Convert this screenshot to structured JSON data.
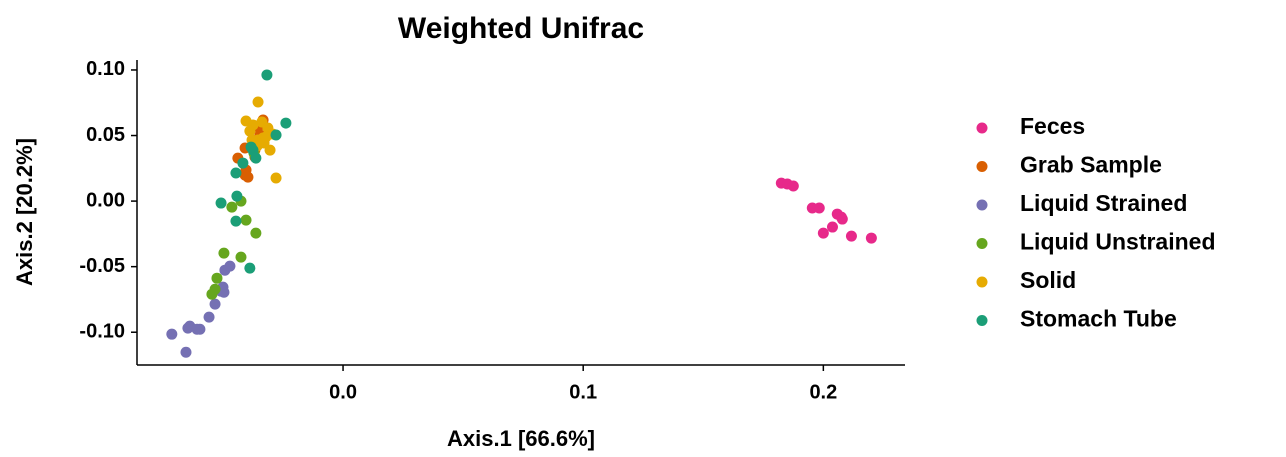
{
  "chart_data": {
    "type": "scatter",
    "title": "Weighted Unifrac",
    "x_label": "Axis.1   [66.6%]",
    "y_label": "Axis.2   [20.2%]",
    "xlim": [
      -0.0858,
      0.234
    ],
    "ylim": [
      -0.125,
      0.1076
    ],
    "xticks": [
      {
        "value": 0,
        "label": "0.0"
      },
      {
        "value": 0.1,
        "label": "0.1"
      },
      {
        "value": 0.2,
        "label": "0.2"
      }
    ],
    "yticks": [
      {
        "value": -0.1,
        "label": "-0.10"
      },
      {
        "value": -0.05,
        "label": "-0.05"
      },
      {
        "value": 0,
        "label": "0.00"
      },
      {
        "value": 0.05,
        "label": "0.05"
      },
      {
        "value": 0.1,
        "label": "0.10"
      }
    ],
    "legend": "right",
    "series": [
      {
        "name": "Feces",
        "color": "#e7298a",
        "x": [
          0.1825,
          0.185,
          0.1875,
          0.1954,
          0.1983,
          0.2,
          0.2038,
          0.2058,
          0.2075,
          0.2079,
          0.2117,
          0.22
        ],
        "values": [
          0.0137,
          0.013,
          0.0115,
          -0.0053,
          -0.0053,
          -0.0244,
          -0.0198,
          -0.0099,
          -0.0122,
          -0.0137,
          -0.0267,
          -0.0282
        ]
      },
      {
        "name": "Grab Sample",
        "color": "#d95f02",
        "x": [
          -0.0333,
          -0.0354,
          -0.0408,
          -0.0438,
          -0.0367,
          -0.0404,
          -0.0408,
          -0.0396,
          -0.0367,
          -0.0346
        ],
        "values": [
          0.0618,
          0.0565,
          0.0405,
          0.0328,
          0.0336,
          0.0237,
          0.0198,
          0.0183,
          0.0389,
          0.0504
        ]
      },
      {
        "name": "Liquid Strained",
        "color": "#7570b3",
        "x": [
          -0.0713,
          -0.0654,
          -0.0638,
          -0.0646,
          -0.0608,
          -0.0596,
          -0.0558,
          -0.0533,
          -0.0508,
          -0.0496,
          -0.0492,
          -0.0471,
          -0.05
        ],
        "values": [
          -0.1015,
          -0.1153,
          -0.0954,
          -0.0969,
          -0.0977,
          -0.0977,
          -0.0885,
          -0.0786,
          -0.0687,
          -0.0695,
          -0.0527,
          -0.0496,
          -0.0656
        ]
      },
      {
        "name": "Liquid Unstrained",
        "color": "#66a61e",
        "x": [
          -0.0546,
          -0.0525,
          -0.0496,
          -0.0463,
          -0.0425,
          -0.0404,
          -0.0363,
          -0.0425,
          -0.0371,
          -0.0533
        ],
        "values": [
          -0.071,
          -0.0588,
          -0.0397,
          -0.0046,
          0,
          -0.0145,
          -0.0244,
          -0.0427,
          0.0366,
          -0.0672
        ]
      },
      {
        "name": "Solid",
        "color": "#e6ab02",
        "x": [
          -0.0354,
          -0.0404,
          -0.0375,
          -0.0338,
          -0.0313,
          -0.0292,
          -0.0354,
          -0.0333,
          -0.0304,
          -0.0379,
          -0.0358,
          -0.0329,
          -0.0279,
          -0.0388,
          -0.0321
        ],
        "values": [
          0.0756,
          0.0611,
          0.058,
          0.0603,
          0.0557,
          0.0511,
          0.0466,
          0.0481,
          0.0389,
          0.0466,
          0.042,
          0.0443,
          0.0176,
          0.0534,
          0.0489
        ]
      },
      {
        "name": "Stomach Tube",
        "color": "#1b9e77",
        "x": [
          -0.0317,
          -0.0238,
          -0.0279,
          -0.0375,
          -0.0383,
          -0.0417,
          -0.0446,
          -0.0442,
          -0.0508,
          -0.0446,
          -0.0388,
          -0.0363
        ],
        "values": [
          0.0962,
          0.0595,
          0.0504,
          0.0389,
          0.0412,
          0.029,
          0.0214,
          0.0038,
          -0.0015,
          -0.0153,
          -0.0511,
          0.0328
        ]
      }
    ]
  }
}
